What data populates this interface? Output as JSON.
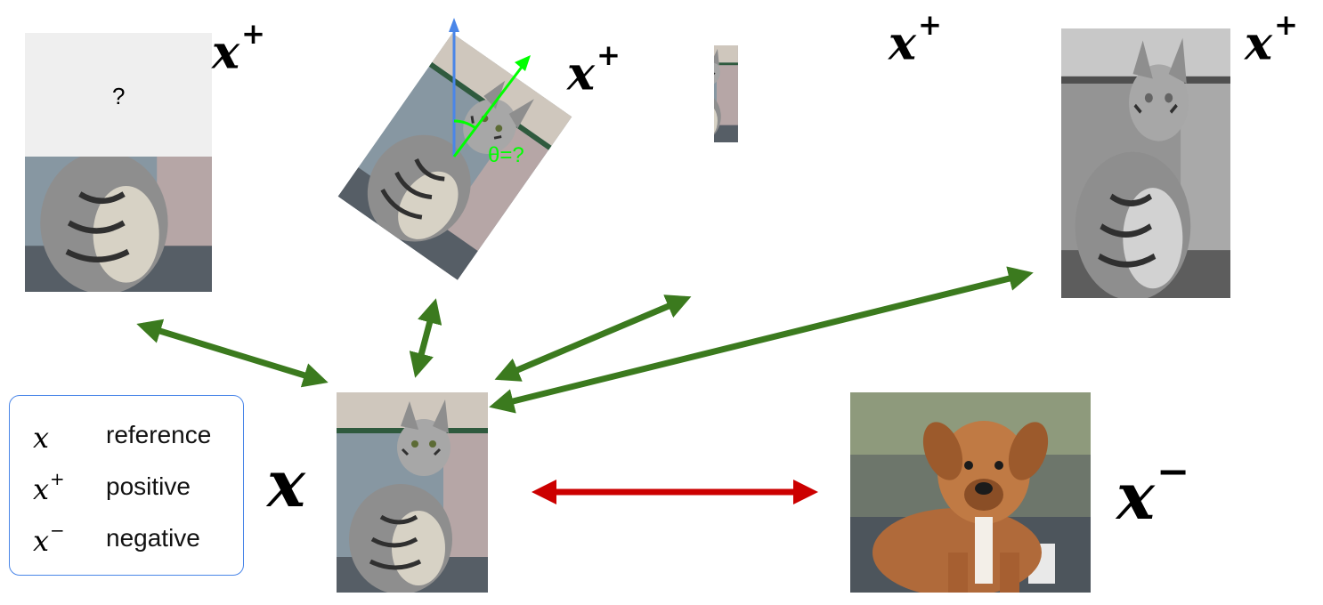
{
  "colors": {
    "positive_arrow": "#3b7a1e",
    "negative_arrow": "#cc0000",
    "rotation_axis_vertical": "#4a86e8",
    "rotation_axis_rotated": "#00ff00",
    "legend_border": "#4a86e8",
    "mask_fill": "#efefef"
  },
  "labels": {
    "reference": "x",
    "positive": "x",
    "negative": "x",
    "plus": "+",
    "minus": "−"
  },
  "legend": {
    "items": [
      {
        "symbol": "x",
        "sup": "",
        "label": "reference"
      },
      {
        "symbol": "x",
        "sup": "+",
        "label": "positive"
      },
      {
        "symbol": "x",
        "sup": "−",
        "label": "negative"
      }
    ]
  },
  "transforms": {
    "masked": {
      "mask_text": "?"
    },
    "rotation": {
      "theta_text": "θ=?"
    },
    "jigsaw": {},
    "grayscale": {}
  },
  "images": {
    "reference": {
      "icon": "cat-photo-icon"
    },
    "negative": {
      "icon": "dog-photo-icon"
    }
  }
}
